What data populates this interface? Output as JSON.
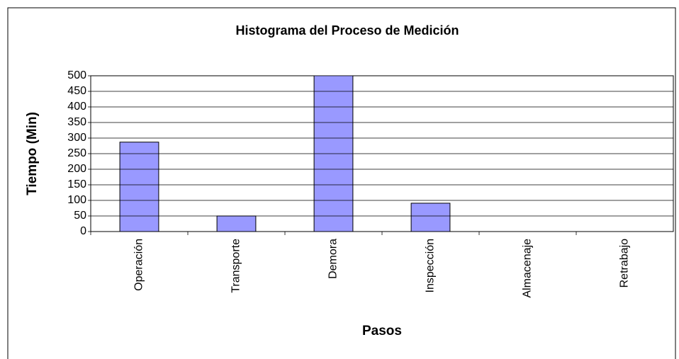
{
  "chart_data": {
    "type": "bar",
    "title": "Histograma del Proceso de Medición",
    "x_label": "Pasos",
    "y_label": "Tiempo (Min)",
    "categories": [
      "Operación",
      "Transporte",
      "Demora",
      "Inspección",
      "Almacenaje",
      "Retrabajo"
    ],
    "values": [
      287,
      50,
      520,
      91,
      0,
      0
    ],
    "color": "#9999ff",
    "ylim": [
      0,
      500
    ],
    "yticks": [
      0,
      50,
      100,
      150,
      200,
      250,
      300,
      350,
      400,
      450,
      500
    ],
    "grid": true
  }
}
